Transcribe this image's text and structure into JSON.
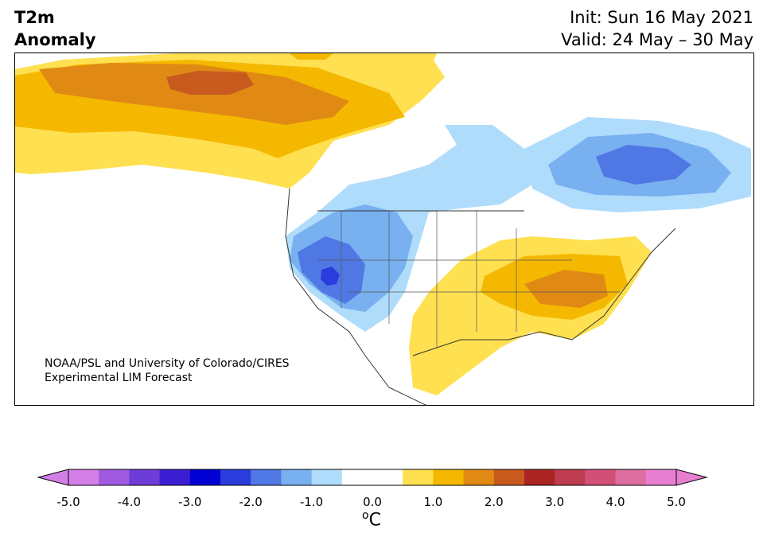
{
  "title": {
    "left_line1": "T2m",
    "left_line2": "Anomaly",
    "init": "Init: Sun 16 May 2021",
    "valid": "Valid: 24 May – 30 May"
  },
  "credit": {
    "line1": "NOAA/PSL and University of Colorado/CIRES",
    "line2": "Experimental LIM Forecast"
  },
  "colorbar": {
    "unit_base": "C",
    "unit_sup": "o",
    "ticks": [
      "-5.0",
      "-4.0",
      "-3.0",
      "-2.0",
      "-1.0",
      "0.0",
      "1.0",
      "2.0",
      "3.0",
      "4.0",
      "5.0"
    ],
    "colors": [
      "#d47ee8",
      "#a05ae0",
      "#6e3cd8",
      "#3c1ed2",
      "#0000d2",
      "#2a3ddc",
      "#5078e4",
      "#78b0f0",
      "#b0dcfc",
      "#ffffff",
      "#ffffff",
      "#ffe050",
      "#f5b800",
      "#e08a14",
      "#c85a1e",
      "#aa2424",
      "#be3c50",
      "#d25078",
      "#de6ea0",
      "#e87ed2"
    ],
    "under_color": "#d47ee8",
    "over_color": "#e87ed2"
  },
  "map": {
    "colors": {
      "light_blue": "#b0dcfc",
      "mid_blue": "#78b0f0",
      "blue": "#5078e4",
      "deep_blue": "#2a3ddc",
      "yellow": "#ffe050",
      "gold": "#f5b800",
      "orange": "#e08a14",
      "dark_orange": "#c85a1e"
    }
  }
}
